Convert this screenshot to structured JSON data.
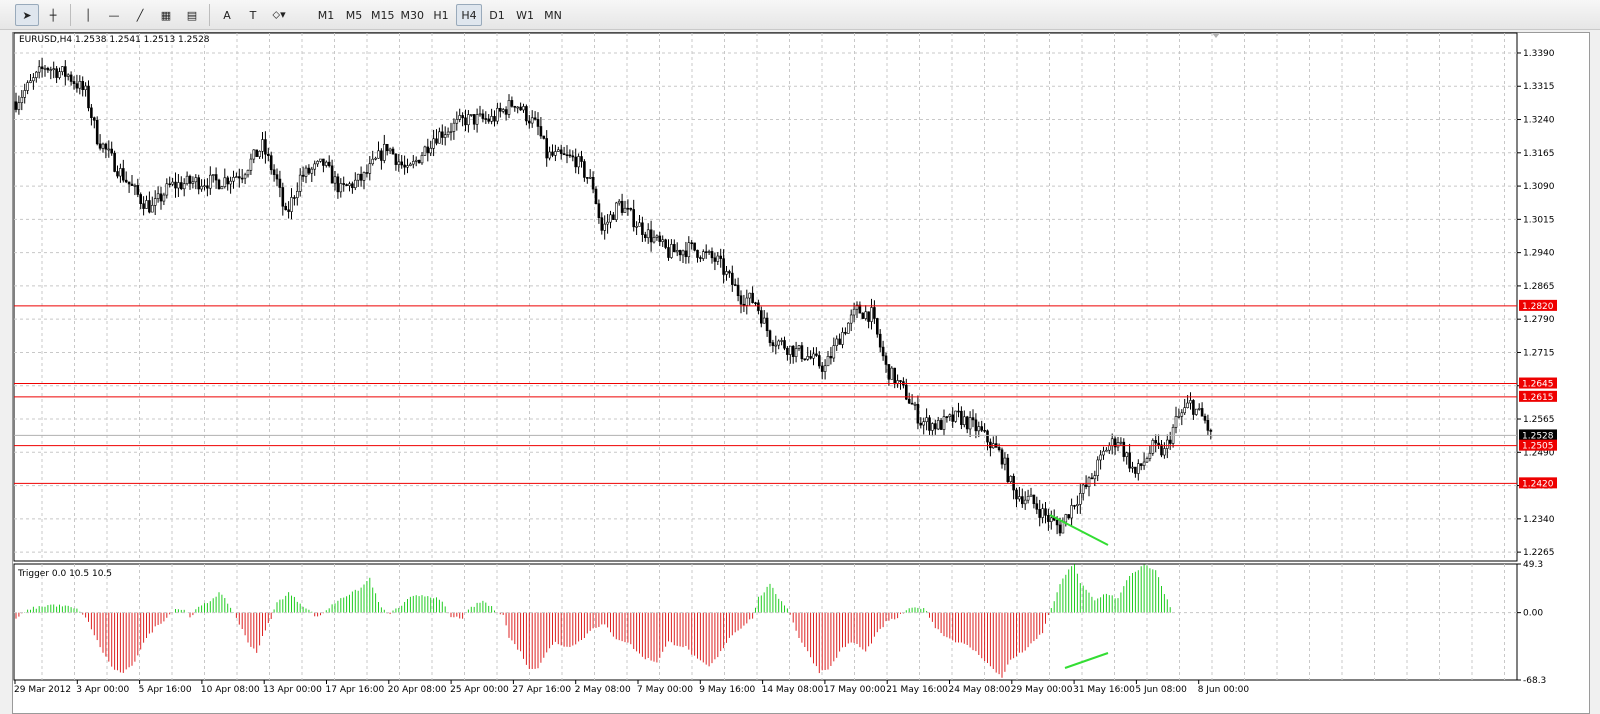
{
  "toolbar": {
    "tools": [
      {
        "name": "cursor-tool",
        "glyph": "➤",
        "active": true
      },
      {
        "name": "crosshair-tool",
        "glyph": "┼",
        "active": false
      },
      {
        "name": "vertical-line-tool",
        "glyph": "│",
        "active": false
      },
      {
        "name": "horizontal-line-tool",
        "glyph": "—",
        "active": false
      },
      {
        "name": "trendline-tool",
        "glyph": "╱",
        "active": false
      },
      {
        "name": "channel-tool",
        "glyph": "▦",
        "active": false
      },
      {
        "name": "fibonacci-tool",
        "glyph": "▤",
        "active": false
      },
      {
        "name": "text-tool",
        "glyph": "A",
        "active": false
      },
      {
        "name": "text-label-tool",
        "glyph": "T",
        "active": false
      },
      {
        "name": "shapes-tool",
        "glyph": "⬦▾",
        "active": false
      }
    ],
    "timeframes": [
      "M1",
      "M5",
      "M15",
      "M30",
      "H1",
      "H4",
      "D1",
      "W1",
      "MN"
    ],
    "active_timeframe": "H4"
  },
  "chart_data": [
    {
      "type": "candlestick",
      "title": "EURUSD,H4  1.2538 1.2541 1.2513 1.2528",
      "ylim": [
        1.2245,
        1.3435
      ],
      "y_ticks": [
        "1.3390",
        "1.3315",
        "1.3240",
        "1.3165",
        "1.3090",
        "1.3015",
        "1.2940",
        "1.2865",
        "1.2790",
        "1.2715",
        "1.2640",
        "1.2565",
        "1.2490",
        "1.2415",
        "1.2340",
        "1.2265"
      ],
      "current_price": "1.2528",
      "levels": [
        {
          "label": "1.2820",
          "value": 1.282
        },
        {
          "label": "1.2645",
          "value": 1.2645
        },
        {
          "label": "1.2615",
          "value": 1.2615
        },
        {
          "label": "1.2505",
          "value": 1.2505
        },
        {
          "label": "1.2420",
          "value": 1.242
        }
      ],
      "anchors": [
        [
          0,
          1.328
        ],
        [
          10,
          1.336
        ],
        [
          18,
          1.334
        ],
        [
          24,
          1.33
        ],
        [
          28,
          1.32
        ],
        [
          35,
          1.313
        ],
        [
          43,
          1.306
        ],
        [
          47,
          1.304
        ],
        [
          53,
          1.309
        ],
        [
          62,
          1.31
        ],
        [
          70,
          1.31
        ],
        [
          78,
          1.312
        ],
        [
          85,
          1.318
        ],
        [
          90,
          1.31
        ],
        [
          93,
          1.302
        ],
        [
          98,
          1.311
        ],
        [
          106,
          1.314
        ],
        [
          112,
          1.308
        ],
        [
          120,
          1.311
        ],
        [
          128,
          1.318
        ],
        [
          135,
          1.312
        ],
        [
          144,
          1.32
        ],
        [
          155,
          1.324
        ],
        [
          164,
          1.324
        ],
        [
          172,
          1.328
        ],
        [
          180,
          1.322
        ],
        [
          183,
          1.316
        ],
        [
          193,
          1.315
        ],
        [
          199,
          1.309
        ],
        [
          202,
          1.299
        ],
        [
          208,
          1.305
        ],
        [
          215,
          1.3
        ],
        [
          225,
          1.294
        ],
        [
          233,
          1.295
        ],
        [
          242,
          1.292
        ],
        [
          250,
          1.284
        ],
        [
          255,
          1.283
        ],
        [
          260,
          1.275
        ],
        [
          268,
          1.272
        ],
        [
          272,
          1.271
        ],
        [
          279,
          1.268
        ],
        [
          284,
          1.275
        ],
        [
          290,
          1.281
        ],
        [
          295,
          1.28
        ],
        [
          300,
          1.268
        ],
        [
          307,
          1.262
        ],
        [
          312,
          1.256
        ],
        [
          318,
          1.255
        ],
        [
          325,
          1.257
        ],
        [
          332,
          1.254
        ],
        [
          340,
          1.248
        ],
        [
          344,
          1.24
        ],
        [
          350,
          1.238
        ],
        [
          356,
          1.234
        ],
        [
          360,
          1.232
        ],
        [
          365,
          1.238
        ],
        [
          370,
          1.242
        ],
        [
          376,
          1.25
        ],
        [
          380,
          1.252
        ],
        [
          386,
          1.244
        ],
        [
          392,
          1.25
        ],
        [
          396,
          1.249
        ],
        [
          400,
          1.256
        ],
        [
          405,
          1.26
        ],
        [
          410,
          1.256
        ],
        [
          412,
          1.2528
        ]
      ],
      "x_ticks": [
        "29 Mar 2012",
        "3 Apr 00:00",
        "5 Apr 16:00",
        "10 Apr 08:00",
        "13 Apr 00:00",
        "17 Apr 16:00",
        "20 Apr 08:00",
        "25 Apr 00:00",
        "27 Apr 16:00",
        "2 May 08:00",
        "7 May 00:00",
        "9 May 16:00",
        "14 May 08:00",
        "17 May 00:00",
        "21 May 16:00",
        "24 May 08:00",
        "29 May 00:00",
        "31 May 16:00",
        "5 Jun 08:00",
        "8 Jun 00:00"
      ],
      "divergence_line": [
        [
          1050,
          515
        ],
        [
          1108,
          545
        ]
      ]
    },
    {
      "type": "histogram",
      "title": "Trigger 0.0 10.5 10.5",
      "ylim": [
        -68.3,
        49.3
      ],
      "y_ticks": [
        "49.3",
        "0.00",
        "-68.3"
      ],
      "colors": {
        "positive": "#22cc22",
        "negative": "#dd2222"
      },
      "anchors": [
        [
          0,
          -6
        ],
        [
          5,
          4
        ],
        [
          12,
          8
        ],
        [
          18,
          6
        ],
        [
          22,
          2
        ],
        [
          25,
          -10
        ],
        [
          29,
          -35
        ],
        [
          33,
          -55
        ],
        [
          36,
          -62
        ],
        [
          40,
          -55
        ],
        [
          44,
          -30
        ],
        [
          48,
          -15
        ],
        [
          52,
          -5
        ],
        [
          55,
          4
        ],
        [
          58,
          3
        ],
        [
          60,
          -4
        ],
        [
          63,
          5
        ],
        [
          66,
          10
        ],
        [
          70,
          20
        ],
        [
          73,
          10
        ],
        [
          76,
          -5
        ],
        [
          80,
          -30
        ],
        [
          83,
          -40
        ],
        [
          85,
          -25
        ],
        [
          88,
          -5
        ],
        [
          90,
          10
        ],
        [
          94,
          20
        ],
        [
          97,
          12
        ],
        [
          100,
          5
        ],
        [
          104,
          -5
        ],
        [
          108,
          5
        ],
        [
          112,
          15
        ],
        [
          116,
          20
        ],
        [
          119,
          25
        ],
        [
          122,
          35
        ],
        [
          125,
          10
        ],
        [
          128,
          -2
        ],
        [
          132,
          5
        ],
        [
          136,
          15
        ],
        [
          140,
          18
        ],
        [
          144,
          16
        ],
        [
          147,
          10
        ],
        [
          150,
          -5
        ],
        [
          154,
          -5
        ],
        [
          157,
          5
        ],
        [
          161,
          12
        ],
        [
          165,
          3
        ],
        [
          168,
          -2
        ],
        [
          170,
          -25
        ],
        [
          174,
          -40
        ],
        [
          177,
          -58
        ],
        [
          180,
          -55
        ],
        [
          183,
          -40
        ],
        [
          186,
          -30
        ],
        [
          190,
          -35
        ],
        [
          195,
          -28
        ],
        [
          199,
          -15
        ],
        [
          203,
          -12
        ],
        [
          206,
          -25
        ],
        [
          211,
          -30
        ],
        [
          216,
          -45
        ],
        [
          221,
          -50
        ],
        [
          225,
          -30
        ],
        [
          231,
          -35
        ],
        [
          235,
          -48
        ],
        [
          239,
          -55
        ],
        [
          242,
          -45
        ],
        [
          246,
          -25
        ],
        [
          250,
          -15
        ],
        [
          254,
          -5
        ],
        [
          256,
          15
        ],
        [
          260,
          28
        ],
        [
          263,
          15
        ],
        [
          266,
          5
        ],
        [
          270,
          -25
        ],
        [
          274,
          -45
        ],
        [
          277,
          -60
        ],
        [
          281,
          -55
        ],
        [
          285,
          -35
        ],
        [
          289,
          -30
        ],
        [
          293,
          -40
        ],
        [
          296,
          -25
        ],
        [
          300,
          -10
        ],
        [
          304,
          -5
        ],
        [
          307,
          2
        ],
        [
          311,
          6
        ],
        [
          314,
          2
        ],
        [
          317,
          -15
        ],
        [
          321,
          -25
        ],
        [
          325,
          -30
        ],
        [
          329,
          -35
        ],
        [
          333,
          -45
        ],
        [
          337,
          -58
        ],
        [
          340,
          -65
        ],
        [
          343,
          -48
        ],
        [
          347,
          -40
        ],
        [
          351,
          -30
        ],
        [
          354,
          -20
        ],
        [
          357,
          5
        ],
        [
          361,
          35
        ],
        [
          365,
          50
        ],
        [
          367,
          30
        ],
        [
          372,
          12
        ],
        [
          376,
          20
        ],
        [
          380,
          14
        ],
        [
          384,
          38
        ],
        [
          389,
          48
        ],
        [
          393,
          42
        ],
        [
          396,
          20
        ],
        [
          398,
          5
        ]
      ],
      "x_positions": {
        "first": 16,
        "step": 2.9
      },
      "divergence_line": [
        [
          1065,
          668
        ],
        [
          1108,
          653
        ]
      ]
    }
  ]
}
